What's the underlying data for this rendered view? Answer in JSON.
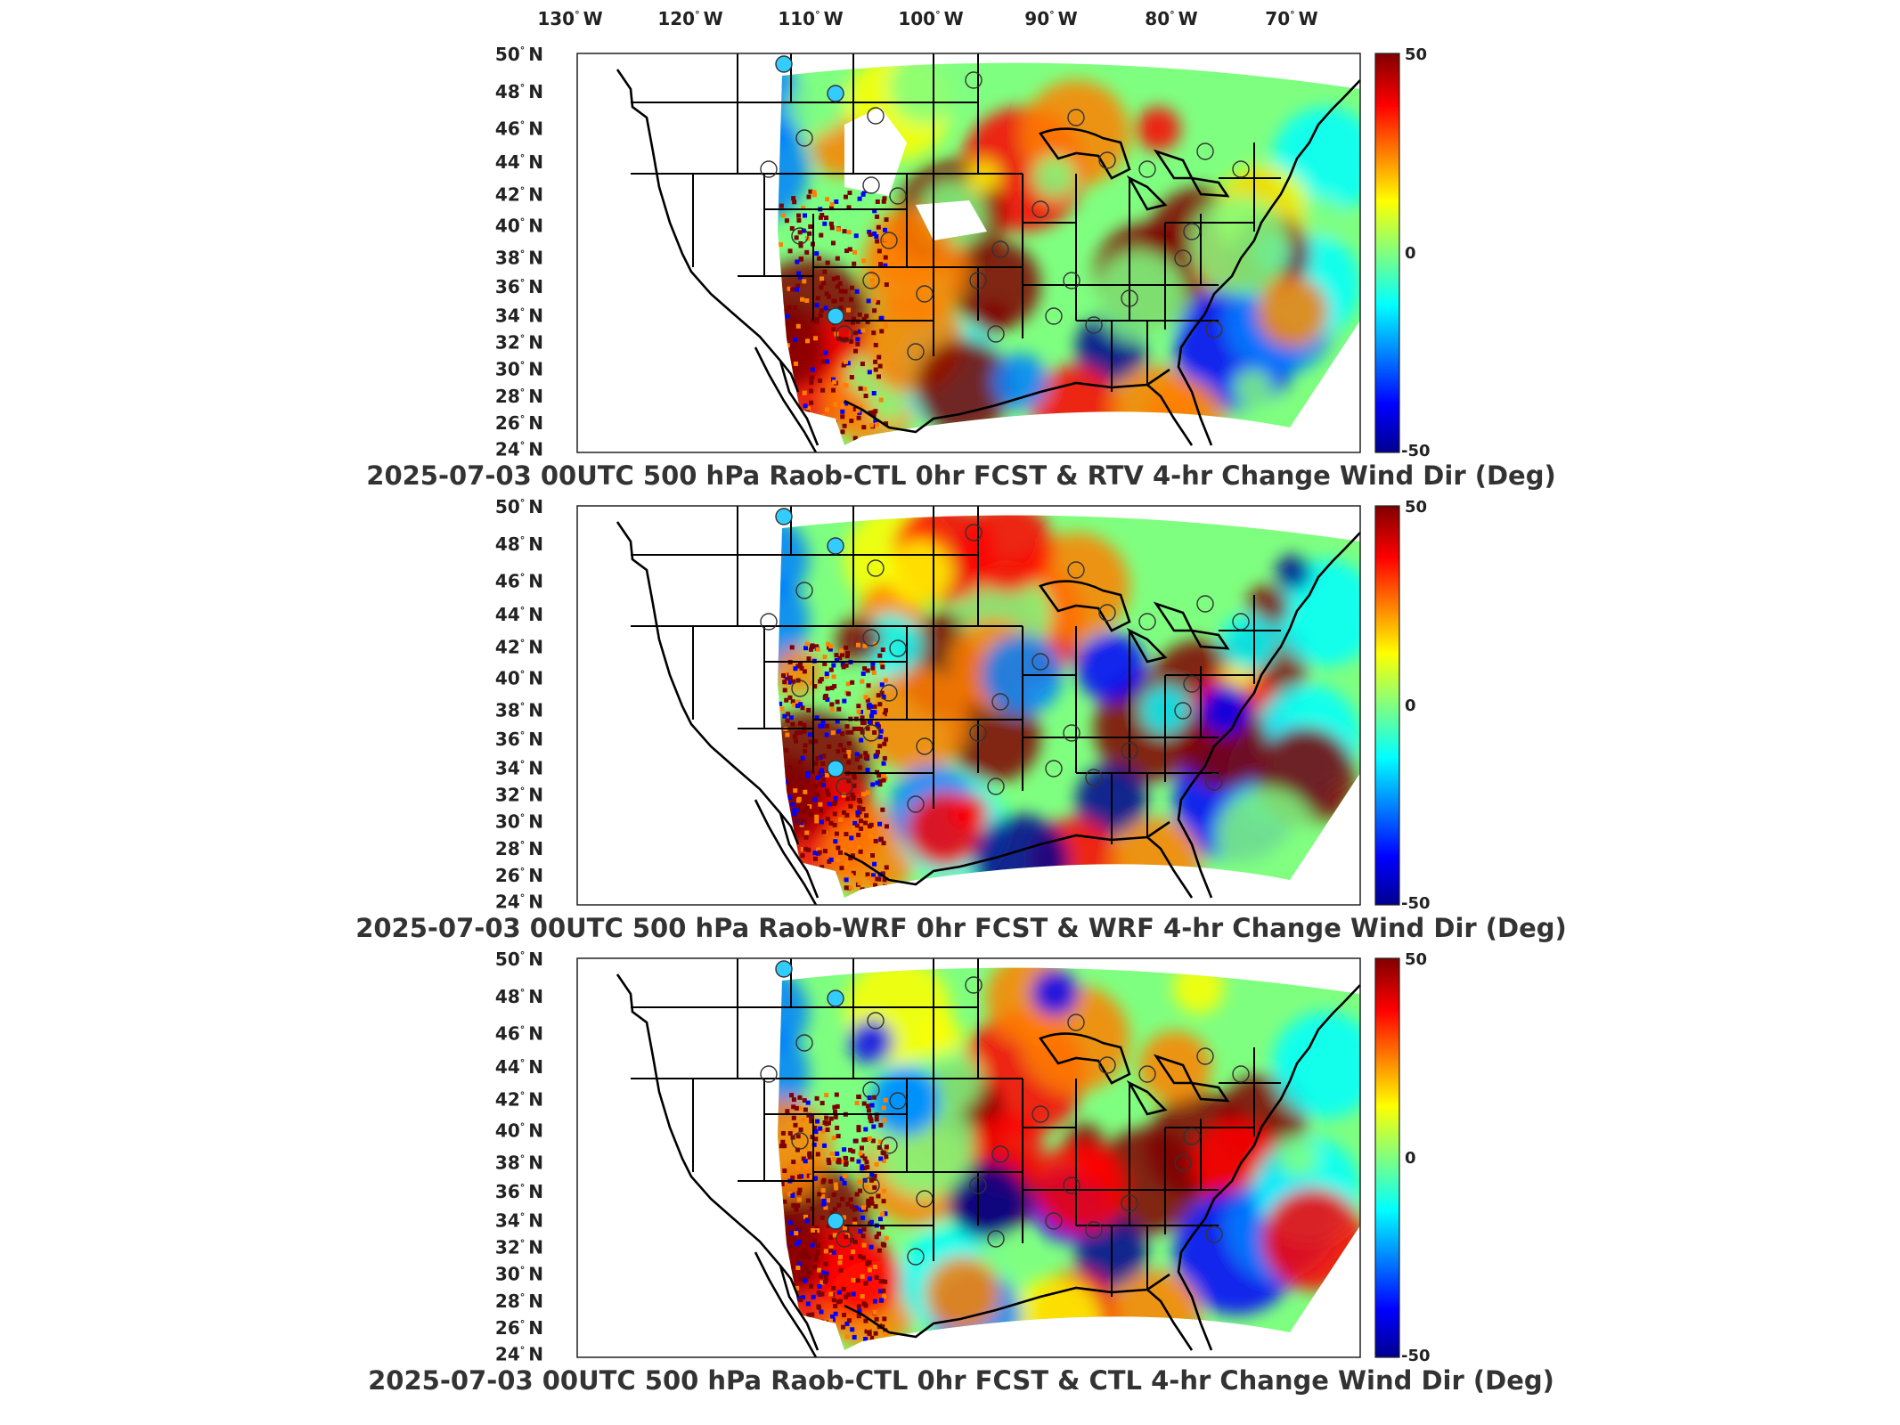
{
  "lon_labels": [
    {
      "deg": "130",
      "dir": "W"
    },
    {
      "deg": "120",
      "dir": "W"
    },
    {
      "deg": "110",
      "dir": "W"
    },
    {
      "deg": "100",
      "dir": "W"
    },
    {
      "deg": "90",
      "dir": "W"
    },
    {
      "deg": "80",
      "dir": "W"
    },
    {
      "deg": "70",
      "dir": "W"
    }
  ],
  "lat_labels": [
    {
      "deg": "50",
      "dir": "N"
    },
    {
      "deg": "48",
      "dir": "N"
    },
    {
      "deg": "46",
      "dir": "N"
    },
    {
      "deg": "44",
      "dir": "N"
    },
    {
      "deg": "42",
      "dir": "N"
    },
    {
      "deg": "40",
      "dir": "N"
    },
    {
      "deg": "38",
      "dir": "N"
    },
    {
      "deg": "36",
      "dir": "N"
    },
    {
      "deg": "34",
      "dir": "N"
    },
    {
      "deg": "32",
      "dir": "N"
    },
    {
      "deg": "30",
      "dir": "N"
    },
    {
      "deg": "28",
      "dir": "N"
    },
    {
      "deg": "26",
      "dir": "N"
    },
    {
      "deg": "24",
      "dir": "N"
    }
  ],
  "colorbar": {
    "max": "50",
    "mid": "0",
    "min": "-50"
  },
  "palette": [
    "#00008f",
    "#0000ff",
    "#0080ff",
    "#00ffff",
    "#80ff80",
    "#ffff00",
    "#ff8000",
    "#ff0000",
    "#800000"
  ],
  "panels": [
    {
      "title": "2025-07-03 00UTC 500 hPa Raob-CTL 0hr FCST & RTV 4-hr Change Wind Dir (Deg)"
    },
    {
      "title": "2025-07-03 00UTC 500 hPa Raob-WRF 0hr FCST & WRF 4-hr Change Wind Dir (Deg)"
    },
    {
      "title": "2025-07-03 00UTC 500 hPa Raob-CTL 0hr FCST & CTL 4-hr Change Wind Dir (Deg)"
    }
  ]
}
